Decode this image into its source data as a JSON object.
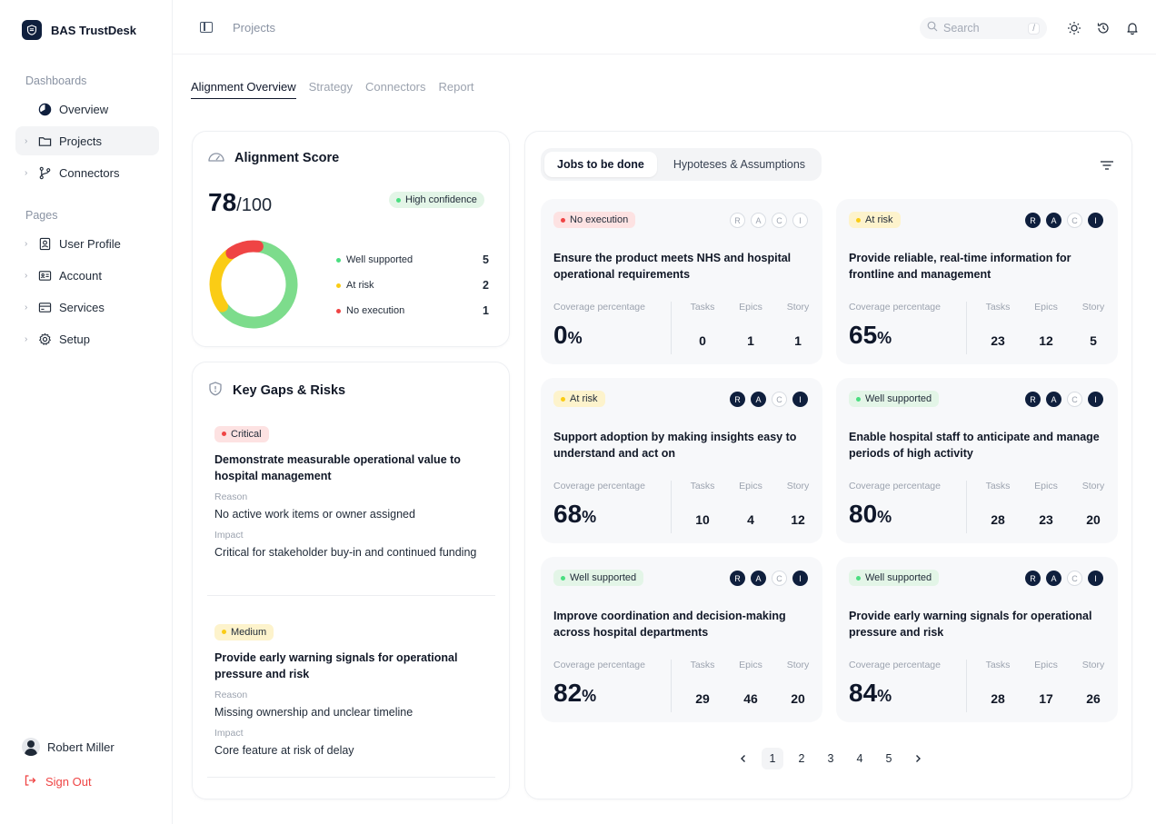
{
  "brand": {
    "name": "BAS TrustDesk"
  },
  "sidebar": {
    "sections": {
      "dashboards": "Dashboards",
      "pages": "Pages"
    },
    "dashboards": [
      {
        "label": "Overview",
        "icon": "pie-chart-icon"
      },
      {
        "label": "Projects",
        "icon": "folder-icon"
      },
      {
        "label": "Connectors",
        "icon": "git-branch-icon"
      }
    ],
    "pages": [
      {
        "label": "User Profile",
        "icon": "user-badge-icon"
      },
      {
        "label": "Account",
        "icon": "id-card-icon"
      },
      {
        "label": "Services",
        "icon": "credit-card-icon"
      },
      {
        "label": "Setup",
        "icon": "gear-icon"
      }
    ],
    "user": {
      "name": "Robert Miller"
    },
    "signout": "Sign Out"
  },
  "topbar": {
    "breadcrumb": "Projects",
    "search": {
      "placeholder": "Search",
      "shortcut": "/"
    }
  },
  "tabs": [
    "Alignment Overview",
    "Strategy",
    "Connectors",
    "Report"
  ],
  "alignment": {
    "title": "Alignment Score",
    "score": "78",
    "denominator": "/100",
    "confidence": "High confidence",
    "legend": [
      {
        "label": "Well supported",
        "value": 5,
        "color": "#7ddc8c"
      },
      {
        "label": "At risk",
        "value": 2,
        "color": "#facc15"
      },
      {
        "label": "No execution",
        "value": 1,
        "color": "#ef4444"
      }
    ]
  },
  "gaps": {
    "title": "Key Gaps & Risks",
    "reason_label": "Reason",
    "impact_label": "Impact",
    "items": [
      {
        "severity": "Critical",
        "title": "Demonstrate measurable operational value to hospital management",
        "reason": "No active work items or owner assigned",
        "impact": "Critical for stakeholder buy-in and continued funding"
      },
      {
        "severity": "Medium",
        "title": "Provide early warning signals for operational pressure and risk",
        "reason": "Missing ownership and unclear timeline",
        "impact": "Core feature at risk of delay"
      }
    ]
  },
  "jobs_panel": {
    "seg": [
      "Jobs to be done",
      "Hypoteses & Assumptions"
    ],
    "labels": {
      "coverage": "Coverage percentage",
      "tasks": "Tasks",
      "epics": "Epics",
      "story": "Story",
      "pct": "%"
    },
    "raci_letters": [
      "R",
      "A",
      "C",
      "I"
    ],
    "jobs": [
      {
        "status": "No execution",
        "status_class": "red",
        "raci": [
          false,
          false,
          false,
          false
        ],
        "title": "Ensure the product meets NHS and hospital operational requirements",
        "coverage": "0",
        "tasks": "0",
        "epics": "1",
        "story": "1"
      },
      {
        "status": "At risk",
        "status_class": "yellow",
        "raci": [
          true,
          true,
          false,
          true
        ],
        "title": "Provide reliable, real-time information for frontline and management",
        "coverage": "65",
        "tasks": "23",
        "epics": "12",
        "story": "5"
      },
      {
        "status": "At risk",
        "status_class": "yellow",
        "raci": [
          true,
          true,
          false,
          true
        ],
        "title": "Support adoption by making insights easy to understand and act on",
        "coverage": "68",
        "tasks": "10",
        "epics": "4",
        "story": "12"
      },
      {
        "status": "Well supported",
        "status_class": "green",
        "raci": [
          true,
          true,
          false,
          true
        ],
        "title": "Enable hospital staff to anticipate and manage periods of high activity",
        "coverage": "80",
        "tasks": "28",
        "epics": "23",
        "story": "20"
      },
      {
        "status": "Well supported",
        "status_class": "green",
        "raci": [
          true,
          true,
          false,
          true
        ],
        "title": "Improve coordination and decision-making across hospital departments",
        "coverage": "82",
        "tasks": "29",
        "epics": "46",
        "story": "20"
      },
      {
        "status": "Well supported",
        "status_class": "green",
        "raci": [
          true,
          true,
          false,
          true
        ],
        "title": "Provide early warning signals for operational pressure and risk",
        "coverage": "84",
        "tasks": "28",
        "epics": "17",
        "story": "26"
      }
    ],
    "pagination": {
      "pages": [
        "1",
        "2",
        "3",
        "4",
        "5"
      ],
      "current": "1"
    }
  }
}
